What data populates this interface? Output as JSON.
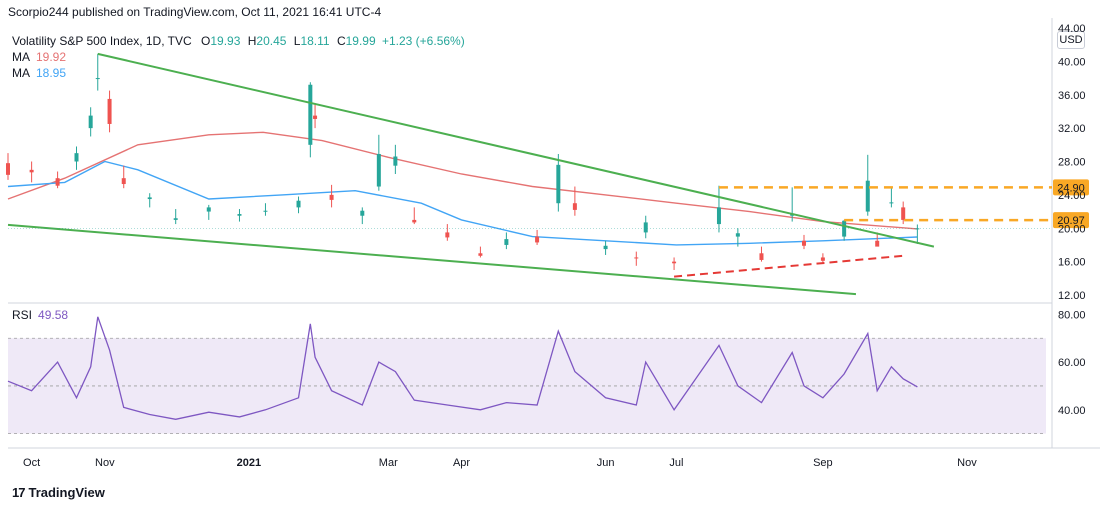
{
  "header": {
    "publish_text": "Scorpio244 published on TradingView.com, Oct 11, 2021 16:41 UTC-4"
  },
  "legend": {
    "symbol": "Volatility S&P 500 Index, 1D, TVC",
    "open_label": "O",
    "open": "19.93",
    "high_label": "H",
    "high": "20.45",
    "low_label": "L",
    "low": "18.11",
    "close_label": "C",
    "close": "19.99",
    "change": "+1.23 (+6.56%)",
    "ma1_label": "MA",
    "ma1_value": "19.92",
    "ma2_label": "MA",
    "ma2_value": "18.95"
  },
  "rsi_legend": {
    "label": "RSI",
    "value": "49.58"
  },
  "currency": "USD",
  "footer": {
    "logo_text": "TradingView",
    "logo_mark": "17"
  },
  "colors": {
    "up": "#26a69a",
    "down": "#ef5350",
    "ma1": "#e57373",
    "ma2": "#42a5f5",
    "trend": "#4caf50",
    "level": "#f9a825",
    "rsi": "#7e57c2",
    "rsi_band": "#ede7f6",
    "support": "#e53935",
    "change": "#26a69a"
  },
  "chart_data": [
    {
      "type": "candlestick",
      "title": "Volatility S&P 500 Index, 1D, TVC",
      "ylabel": "USD",
      "y_ticks": [
        "12.00",
        "16.00",
        "20.00",
        "24.00",
        "28.00",
        "32.00",
        "36.00",
        "40.00",
        "44.00"
      ],
      "ylim": [
        12,
        44
      ],
      "x_ticks": [
        "Oct",
        "Nov",
        "2021",
        "Mar",
        "Apr",
        "Jun",
        "Jul",
        "Sep",
        "Nov"
      ],
      "x_tick_dates": [
        "2020-10-01",
        "2020-11-01",
        "2021-01-01",
        "2021-03-01",
        "2021-04-01",
        "2021-06-01",
        "2021-07-01",
        "2021-09-01",
        "2021-11-01"
      ],
      "price_labels": [
        {
          "value": "24.90",
          "level": 24.9
        },
        {
          "value": "20.97",
          "level": 20.97
        }
      ],
      "last_close": 19.99,
      "series": [
        {
          "name": "VIX",
          "ohlc_points": [
            [
              "2020-09-21",
              27.8,
              29.0,
              25.8,
              26.4
            ],
            [
              "2020-10-01",
              27.0,
              28.0,
              25.5,
              26.7
            ],
            [
              "2020-10-12",
              26.0,
              26.8,
              24.8,
              25.1
            ],
            [
              "2020-10-20",
              28.0,
              29.8,
              27.0,
              29.0
            ],
            [
              "2020-10-26",
              32.0,
              34.5,
              31.0,
              33.5
            ],
            [
              "2020-10-29",
              38.0,
              40.9,
              36.5,
              38.0
            ],
            [
              "2020-11-03",
              35.5,
              36.5,
              31.5,
              32.5
            ],
            [
              "2020-11-09",
              26.0,
              27.5,
              24.8,
              25.3
            ],
            [
              "2020-11-20",
              23.5,
              24.2,
              22.5,
              23.7
            ],
            [
              "2020-12-01",
              21.0,
              22.3,
              20.5,
              21.2
            ],
            [
              "2020-12-15",
              22.0,
              22.8,
              21.0,
              22.5
            ],
            [
              "2020-12-28",
              21.5,
              22.3,
              20.8,
              21.7
            ],
            [
              "2021-01-08",
              22.0,
              23.0,
              21.5,
              22.1
            ],
            [
              "2021-01-22",
              22.5,
              23.8,
              21.8,
              23.3
            ],
            [
              "2021-01-27",
              30.0,
              37.5,
              28.5,
              37.2
            ],
            [
              "2021-01-29",
              33.5,
              35.0,
              32.0,
              33.1
            ],
            [
              "2021-02-05",
              24.0,
              25.2,
              22.5,
              23.4
            ],
            [
              "2021-02-18",
              21.5,
              22.5,
              20.5,
              22.1
            ],
            [
              "2021-02-25",
              25.0,
              31.2,
              24.5,
              28.9
            ],
            [
              "2021-03-04",
              27.5,
              30.0,
              26.5,
              28.6
            ],
            [
              "2021-03-12",
              21.0,
              22.5,
              20.5,
              20.7
            ],
            [
              "2021-03-26",
              19.5,
              20.5,
              18.5,
              18.9
            ],
            [
              "2021-04-09",
              17.0,
              17.8,
              16.5,
              16.7
            ],
            [
              "2021-04-20",
              18.0,
              19.5,
              17.5,
              18.7
            ],
            [
              "2021-05-03",
              19.0,
              19.8,
              18.0,
              18.3
            ],
            [
              "2021-05-12",
              23.0,
              28.9,
              22.0,
              27.6
            ],
            [
              "2021-05-19",
              23.0,
              25.0,
              21.5,
              22.2
            ],
            [
              "2021-06-01",
              17.5,
              18.5,
              16.8,
              17.9
            ],
            [
              "2021-06-14",
              16.5,
              17.2,
              15.5,
              16.4
            ],
            [
              "2021-06-18",
              19.5,
              21.5,
              18.8,
              20.7
            ],
            [
              "2021-06-30",
              16.0,
              16.5,
              15.0,
              15.8
            ],
            [
              "2021-07-19",
              20.5,
              25.1,
              19.5,
              22.5
            ],
            [
              "2021-07-27",
              19.0,
              20.0,
              17.8,
              19.4
            ],
            [
              "2021-08-06",
              17.0,
              17.8,
              16.0,
              16.2
            ],
            [
              "2021-08-19",
              21.5,
              24.9,
              20.8,
              21.7
            ],
            [
              "2021-08-24",
              18.5,
              19.2,
              17.5,
              17.9
            ],
            [
              "2021-09-01",
              16.5,
              17.0,
              15.9,
              16.1
            ],
            [
              "2021-09-10",
              19.0,
              21.0,
              18.5,
              20.9
            ],
            [
              "2021-09-20",
              22.0,
              28.8,
              21.5,
              25.7
            ],
            [
              "2021-09-24",
              18.5,
              19.5,
              17.9,
              17.8
            ],
            [
              "2021-09-30",
              23.0,
              24.9,
              22.5,
              23.1
            ],
            [
              "2021-10-05",
              22.5,
              23.2,
              20.5,
              21.0
            ],
            [
              "2021-10-11",
              19.93,
              20.45,
              18.11,
              19.99
            ]
          ]
        },
        {
          "name": "MA",
          "points": [
            [
              "2020-09-21",
              23.5
            ],
            [
              "2020-10-15",
              26.0
            ],
            [
              "2020-11-15",
              30.0
            ],
            [
              "2020-12-15",
              31.2
            ],
            [
              "2021-01-07",
              31.5
            ],
            [
              "2021-02-01",
              30.5
            ],
            [
              "2021-03-01",
              28.5
            ],
            [
              "2021-04-01",
              26.5
            ],
            [
              "2021-05-01",
              25.0
            ],
            [
              "2021-06-01",
              24.0
            ],
            [
              "2021-07-01",
              23.0
            ],
            [
              "2021-08-01",
              22.0
            ],
            [
              "2021-09-01",
              20.8
            ],
            [
              "2021-10-11",
              19.92
            ]
          ]
        },
        {
          "name": "MA",
          "points": [
            [
              "2020-09-21",
              25.0
            ],
            [
              "2020-10-15",
              25.5
            ],
            [
              "2020-11-01",
              28.0
            ],
            [
              "2020-11-15",
              27.0
            ],
            [
              "2020-12-15",
              23.5
            ],
            [
              "2021-01-15",
              24.0
            ],
            [
              "2021-02-15",
              24.5
            ],
            [
              "2021-03-15",
              23.0
            ],
            [
              "2021-04-01",
              21.0
            ],
            [
              "2021-05-01",
              19.0
            ],
            [
              "2021-06-01",
              18.5
            ],
            [
              "2021-07-01",
              18.0
            ],
            [
              "2021-08-01",
              18.2
            ],
            [
              "2021-09-01",
              18.5
            ],
            [
              "2021-10-11",
              18.95
            ]
          ]
        }
      ],
      "annotations": {
        "trend_lines": [
          [
            [
              "2020-10-29",
              40.9
            ],
            [
              "2021-10-18",
              17.8
            ]
          ],
          [
            [
              "2020-09-21",
              20.4
            ],
            [
              "2021-09-15",
              12.1
            ]
          ]
        ],
        "support_line": [
          [
            "2021-06-30",
            14.2
          ],
          [
            "2021-10-05",
            16.7
          ]
        ],
        "resistance_levels": [
          [
            [
              "2021-07-19",
              24.9
            ],
            [
              "2021-10-30",
              24.9
            ]
          ],
          [
            [
              "2021-09-10",
              20.97
            ],
            [
              "2021-10-30",
              20.97
            ]
          ]
        ]
      }
    },
    {
      "type": "line",
      "title": "RSI",
      "y_ticks": [
        "40.00",
        "60.00",
        "80.00"
      ],
      "ylim": [
        29,
        81
      ],
      "band": [
        30,
        70
      ],
      "series": [
        {
          "name": "RSI",
          "points": [
            [
              "2020-09-21",
              52
            ],
            [
              "2020-10-01",
              48
            ],
            [
              "2020-10-12",
              60
            ],
            [
              "2020-10-20",
              45
            ],
            [
              "2020-10-26",
              58
            ],
            [
              "2020-10-29",
              79
            ],
            [
              "2020-11-03",
              65
            ],
            [
              "2020-11-09",
              41
            ],
            [
              "2020-11-20",
              38
            ],
            [
              "2020-12-01",
              36
            ],
            [
              "2020-12-15",
              39
            ],
            [
              "2020-12-28",
              37
            ],
            [
              "2021-01-08",
              40
            ],
            [
              "2021-01-22",
              45
            ],
            [
              "2021-01-27",
              76
            ],
            [
              "2021-01-29",
              62
            ],
            [
              "2021-02-05",
              48
            ],
            [
              "2021-02-18",
              42
            ],
            [
              "2021-02-25",
              60
            ],
            [
              "2021-03-04",
              56
            ],
            [
              "2021-03-12",
              44
            ],
            [
              "2021-03-26",
              42
            ],
            [
              "2021-04-09",
              40
            ],
            [
              "2021-04-20",
              43
            ],
            [
              "2021-05-03",
              42
            ],
            [
              "2021-05-12",
              73
            ],
            [
              "2021-05-19",
              56
            ],
            [
              "2021-06-01",
              45
            ],
            [
              "2021-06-14",
              42
            ],
            [
              "2021-06-18",
              60
            ],
            [
              "2021-06-30",
              40
            ],
            [
              "2021-07-19",
              67
            ],
            [
              "2021-07-27",
              50
            ],
            [
              "2021-08-06",
              43
            ],
            [
              "2021-08-19",
              64
            ],
            [
              "2021-08-24",
              50
            ],
            [
              "2021-09-01",
              45
            ],
            [
              "2021-09-10",
              55
            ],
            [
              "2021-09-20",
              72
            ],
            [
              "2021-09-24",
              48
            ],
            [
              "2021-09-30",
              58
            ],
            [
              "2021-10-05",
              53
            ],
            [
              "2021-10-11",
              49.58
            ]
          ]
        }
      ]
    }
  ]
}
